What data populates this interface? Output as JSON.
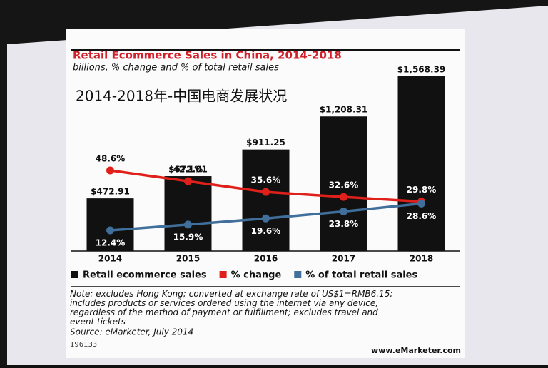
{
  "chart_data": {
    "type": "bar",
    "title": "Retail Ecommerce Sales in China, 2014-2018",
    "subtitle": "billions, % change and % of total retail sales",
    "annotation": "2014-2018年-中国电商发展状况",
    "categories": [
      "2014",
      "2015",
      "2016",
      "2017",
      "2018"
    ],
    "series": [
      {
        "name": "Retail ecommerce sales",
        "type": "bar",
        "color": "#111111",
        "values": [
          472.91,
          672.01,
          911.25,
          1208.31,
          1568.39
        ],
        "value_labels": [
          "$472.91",
          "$672.01",
          "$911.25",
          "$1,208.31",
          "$1,568.39"
        ]
      },
      {
        "name": "% change",
        "type": "line",
        "color": "#e0201b",
        "values": [
          48.6,
          42.1,
          35.6,
          32.6,
          29.8
        ],
        "value_labels": [
          "48.6%",
          "42.1%",
          "35.6%",
          "32.6%",
          "29.8%"
        ]
      },
      {
        "name": "% of total retail sales",
        "type": "line",
        "color": "#3f6f9a",
        "values": [
          12.4,
          15.9,
          19.6,
          23.8,
          28.6
        ],
        "value_labels": [
          "12.4%",
          "15.9%",
          "19.6%",
          "23.8%",
          "28.6%"
        ]
      }
    ],
    "note": "Note: excludes Hong Kong; converted at exchange rate of US$1=RMB6.15; includes products or services ordered using the internet via any device, regardless of the method of payment or fulfillment; excludes travel and event tickets",
    "source": "Source: eMarketer, July 2014",
    "chart_id": "196133",
    "website": "www.eMarketer.com"
  }
}
